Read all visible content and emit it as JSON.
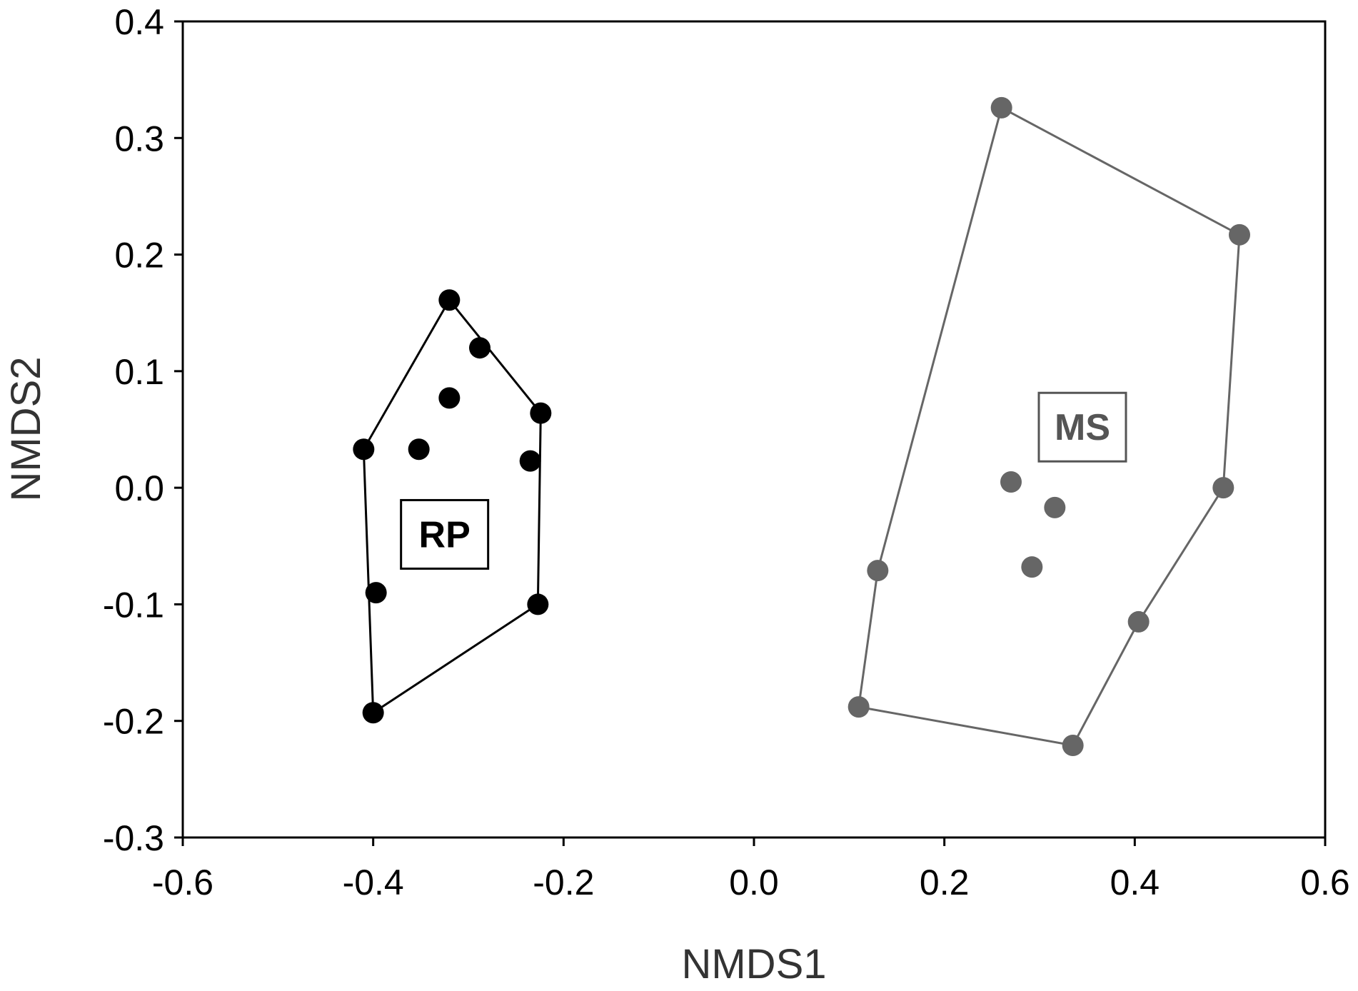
{
  "chart_data": {
    "type": "scatter",
    "xlabel": "NMDS1",
    "ylabel": "NMDS2",
    "xlim": [
      -0.6,
      0.6
    ],
    "ylim": [
      -0.3,
      0.4
    ],
    "x_ticks": [
      -0.6,
      -0.4,
      -0.2,
      0.0,
      0.2,
      0.4,
      0.6
    ],
    "y_ticks": [
      -0.3,
      -0.2,
      -0.1,
      0.0,
      0.1,
      0.2,
      0.3,
      0.4
    ],
    "x_tick_labels": [
      "-0.6",
      "-0.4",
      "-0.2",
      "0.0",
      "0.2",
      "0.4",
      "0.6"
    ],
    "y_tick_labels": [
      "-0.3",
      "-0.2",
      "-0.1",
      "0.0",
      "0.1",
      "0.2",
      "0.3",
      "0.4"
    ],
    "grid": false,
    "series": [
      {
        "name": "RP",
        "color": "#000000",
        "points": [
          {
            "x": -0.32,
            "y": 0.161
          },
          {
            "x": -0.288,
            "y": 0.12
          },
          {
            "x": -0.224,
            "y": 0.064
          },
          {
            "x": -0.32,
            "y": 0.077
          },
          {
            "x": -0.352,
            "y": 0.033
          },
          {
            "x": -0.41,
            "y": 0.033
          },
          {
            "x": -0.235,
            "y": 0.023
          },
          {
            "x": -0.397,
            "y": -0.09
          },
          {
            "x": -0.227,
            "y": -0.1
          },
          {
            "x": -0.4,
            "y": -0.193
          }
        ],
        "hull": [
          {
            "x": -0.32,
            "y": 0.161
          },
          {
            "x": -0.224,
            "y": 0.064
          },
          {
            "x": -0.227,
            "y": -0.1
          },
          {
            "x": -0.4,
            "y": -0.193
          },
          {
            "x": -0.41,
            "y": 0.033
          }
        ]
      },
      {
        "name": "MS",
        "color": "#666666",
        "points": [
          {
            "x": 0.26,
            "y": 0.326
          },
          {
            "x": 0.51,
            "y": 0.217
          },
          {
            "x": 0.27,
            "y": 0.005
          },
          {
            "x": 0.316,
            "y": -0.017
          },
          {
            "x": 0.493,
            "y": 0.0
          },
          {
            "x": 0.13,
            "y": -0.071
          },
          {
            "x": 0.292,
            "y": -0.068
          },
          {
            "x": 0.404,
            "y": -0.115
          },
          {
            "x": 0.11,
            "y": -0.188
          },
          {
            "x": 0.335,
            "y": -0.221
          }
        ],
        "hull": [
          {
            "x": 0.26,
            "y": 0.326
          },
          {
            "x": 0.51,
            "y": 0.217
          },
          {
            "x": 0.493,
            "y": 0.0
          },
          {
            "x": 0.404,
            "y": -0.115
          },
          {
            "x": 0.335,
            "y": -0.221
          },
          {
            "x": 0.11,
            "y": -0.188
          },
          {
            "x": 0.13,
            "y": -0.071
          }
        ]
      }
    ],
    "annotations": [
      {
        "text": "RP",
        "x": -0.325,
        "y": -0.04,
        "color": "#000000"
      },
      {
        "text": "MS",
        "x": 0.345,
        "y": 0.052,
        "color": "#555555"
      }
    ]
  }
}
